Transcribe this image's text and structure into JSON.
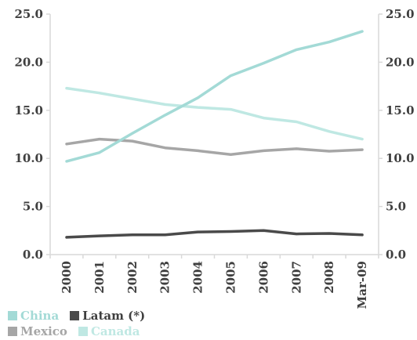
{
  "chart_data": {
    "type": "line",
    "categories": [
      "2000",
      "2001",
      "2002",
      "2003",
      "2004",
      "2005",
      "2006",
      "2007",
      "2008",
      "Mar-09"
    ],
    "ylim": [
      0,
      25
    ],
    "y_ticks": [
      "0.0",
      "5.0",
      "10.0",
      "15.0",
      "20.0",
      "25.0"
    ],
    "y_tick_values": [
      0,
      5,
      10,
      15,
      20,
      25
    ],
    "y_axes": "left-and-right",
    "grid": false,
    "legend_position": "bottom-left",
    "series": [
      {
        "name": "China",
        "color": "#a3dad6",
        "values": [
          9.7,
          10.6,
          12.6,
          14.5,
          16.3,
          18.6,
          19.9,
          21.3,
          22.1,
          23.2
        ]
      },
      {
        "name": "Latam (*)",
        "color": "#4a4a4a",
        "values": [
          1.8,
          1.95,
          2.05,
          2.05,
          2.35,
          2.4,
          2.5,
          2.15,
          2.2,
          2.05
        ]
      },
      {
        "name": "Mexico",
        "color": "#a6a6a6",
        "values": [
          11.5,
          12.0,
          11.8,
          11.1,
          10.8,
          10.4,
          10.8,
          11.0,
          10.75,
          10.9
        ]
      },
      {
        "name": "Canada",
        "color": "#bfe8e3",
        "values": [
          17.3,
          16.8,
          16.2,
          15.6,
          15.3,
          15.1,
          14.2,
          13.8,
          12.8,
          12.0
        ]
      }
    ]
  }
}
